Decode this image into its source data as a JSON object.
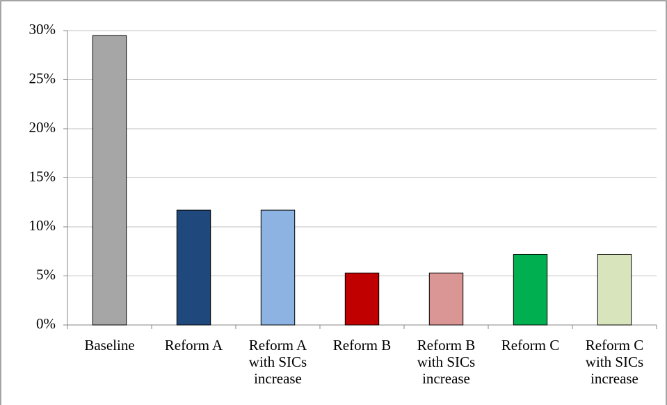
{
  "chart_data": {
    "type": "bar",
    "categories": [
      "Baseline",
      "Reform A",
      "Reform A with SICs increase",
      "Reform B",
      "Reform B with SICs increase",
      "Reform C",
      "Reform C with SICs increase"
    ],
    "values": [
      29.5,
      11.7,
      11.7,
      5.3,
      5.3,
      7.2,
      7.2
    ],
    "colors": [
      "#a6a6a6",
      "#1f497d",
      "#8db3e2",
      "#c00000",
      "#da9694",
      "#00b050",
      "#d7e4bc"
    ],
    "ylim": [
      0,
      30
    ],
    "yticks": [
      {
        "value": 0,
        "label": "0%"
      },
      {
        "value": 5,
        "label": "5%"
      },
      {
        "value": 10,
        "label": "10%"
      },
      {
        "value": 15,
        "label": "15%"
      },
      {
        "value": 20,
        "label": "20%"
      },
      {
        "value": 25,
        "label": "25%"
      },
      {
        "value": 30,
        "label": "30%"
      }
    ],
    "grid": true
  }
}
